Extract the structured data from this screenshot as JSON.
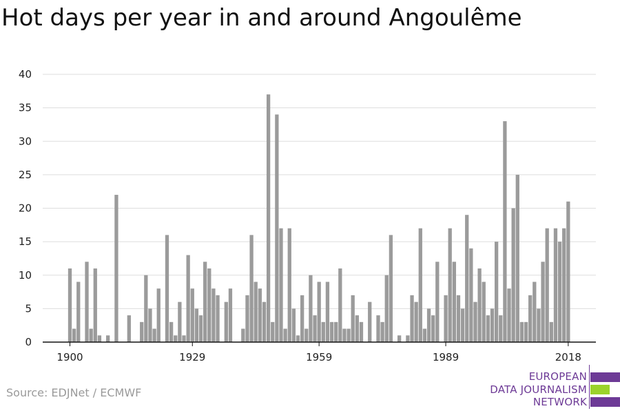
{
  "title": "Hot days per year in and around Angoulême",
  "source": "Source: EDJNet / ECMWF",
  "logo": {
    "lines": [
      "EUROPEAN",
      "DATA JOURNALISM",
      "NETWORK"
    ],
    "colors": {
      "purple": "#6d3a96",
      "green": "#9bd32b"
    }
  },
  "colors": {
    "bar": "#9b9b9b",
    "grid": "#dddddd",
    "axis": "#111111"
  },
  "chart_data": {
    "type": "bar",
    "title": "Hot days per year in and around Angoulême",
    "xlabel": "",
    "ylabel": "",
    "ylim": [
      0,
      40
    ],
    "yticks": [
      0,
      5,
      10,
      15,
      20,
      25,
      30,
      35,
      40
    ],
    "xticks": [
      1900,
      1929,
      1959,
      1989,
      2018
    ],
    "grid": true,
    "legend": "none",
    "x": [
      1900,
      1901,
      1902,
      1903,
      1904,
      1905,
      1906,
      1907,
      1908,
      1909,
      1910,
      1911,
      1912,
      1913,
      1914,
      1915,
      1916,
      1917,
      1918,
      1919,
      1920,
      1921,
      1922,
      1923,
      1924,
      1925,
      1926,
      1927,
      1928,
      1929,
      1930,
      1931,
      1932,
      1933,
      1934,
      1935,
      1936,
      1937,
      1938,
      1939,
      1940,
      1941,
      1942,
      1943,
      1944,
      1945,
      1946,
      1947,
      1948,
      1949,
      1950,
      1951,
      1952,
      1953,
      1954,
      1955,
      1956,
      1957,
      1958,
      1959,
      1960,
      1961,
      1962,
      1963,
      1964,
      1965,
      1966,
      1967,
      1968,
      1969,
      1970,
      1971,
      1972,
      1973,
      1974,
      1975,
      1976,
      1977,
      1978,
      1979,
      1980,
      1981,
      1982,
      1983,
      1984,
      1985,
      1986,
      1987,
      1988,
      1989,
      1990,
      1991,
      1992,
      1993,
      1994,
      1995,
      1996,
      1997,
      1998,
      1999,
      2000,
      2001,
      2002,
      2003,
      2004,
      2005,
      2006,
      2007,
      2008,
      2009,
      2010,
      2011,
      2012,
      2013,
      2014,
      2015,
      2016,
      2017,
      2018
    ],
    "values": [
      11,
      2,
      9,
      0,
      12,
      2,
      11,
      1,
      0,
      1,
      0,
      22,
      0,
      0,
      4,
      0,
      0,
      3,
      10,
      5,
      2,
      8,
      0,
      16,
      3,
      1,
      6,
      1,
      13,
      8,
      5,
      4,
      12,
      11,
      8,
      7,
      0,
      6,
      8,
      0,
      0,
      2,
      7,
      16,
      9,
      8,
      6,
      37,
      3,
      34,
      17,
      2,
      17,
      5,
      1,
      7,
      2,
      10,
      4,
      9,
      3,
      9,
      3,
      3,
      11,
      2,
      2,
      7,
      4,
      3,
      0,
      6,
      0,
      4,
      3,
      10,
      16,
      0,
      1,
      0,
      1,
      7,
      6,
      17,
      2,
      5,
      4,
      12,
      0,
      7,
      17,
      12,
      7,
      5,
      19,
      14,
      6,
      11,
      9,
      4,
      5,
      15,
      4,
      33,
      8,
      20,
      25,
      3,
      3,
      7,
      9,
      5,
      12,
      17,
      3,
      17,
      15,
      17,
      21
    ]
  }
}
